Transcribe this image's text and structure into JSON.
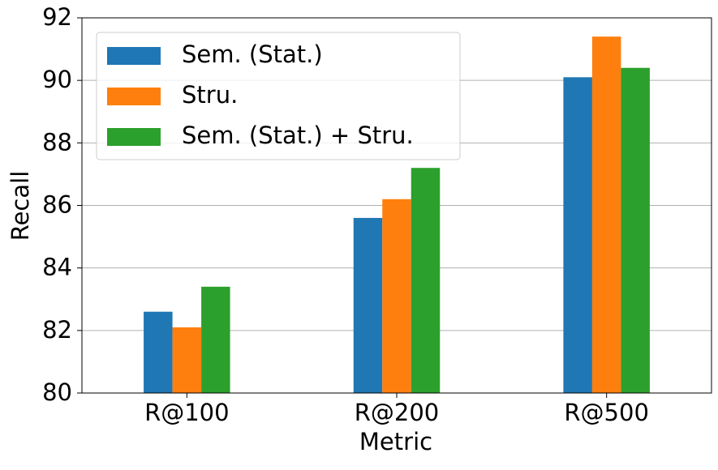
{
  "chart_data": {
    "type": "bar",
    "x_label": "Metric",
    "y_label": "Recall",
    "categories": [
      "R@100",
      "R@200",
      "R@500"
    ],
    "series": [
      {
        "name": "Sem. (Stat.)",
        "color": "#1f77b4",
        "values": [
          82.6,
          85.6,
          90.1
        ]
      },
      {
        "name": "Stru.",
        "color": "#ff7f0e",
        "values": [
          82.1,
          86.2,
          91.4
        ]
      },
      {
        "name": "Sem. (Stat.) + Stru.",
        "color": "#2ca02c",
        "values": [
          83.4,
          87.2,
          90.4
        ]
      }
    ],
    "ylim": [
      80,
      92
    ],
    "yticks": [
      80,
      82,
      84,
      86,
      88,
      90,
      92
    ],
    "grid": true,
    "legend": "upper left"
  }
}
